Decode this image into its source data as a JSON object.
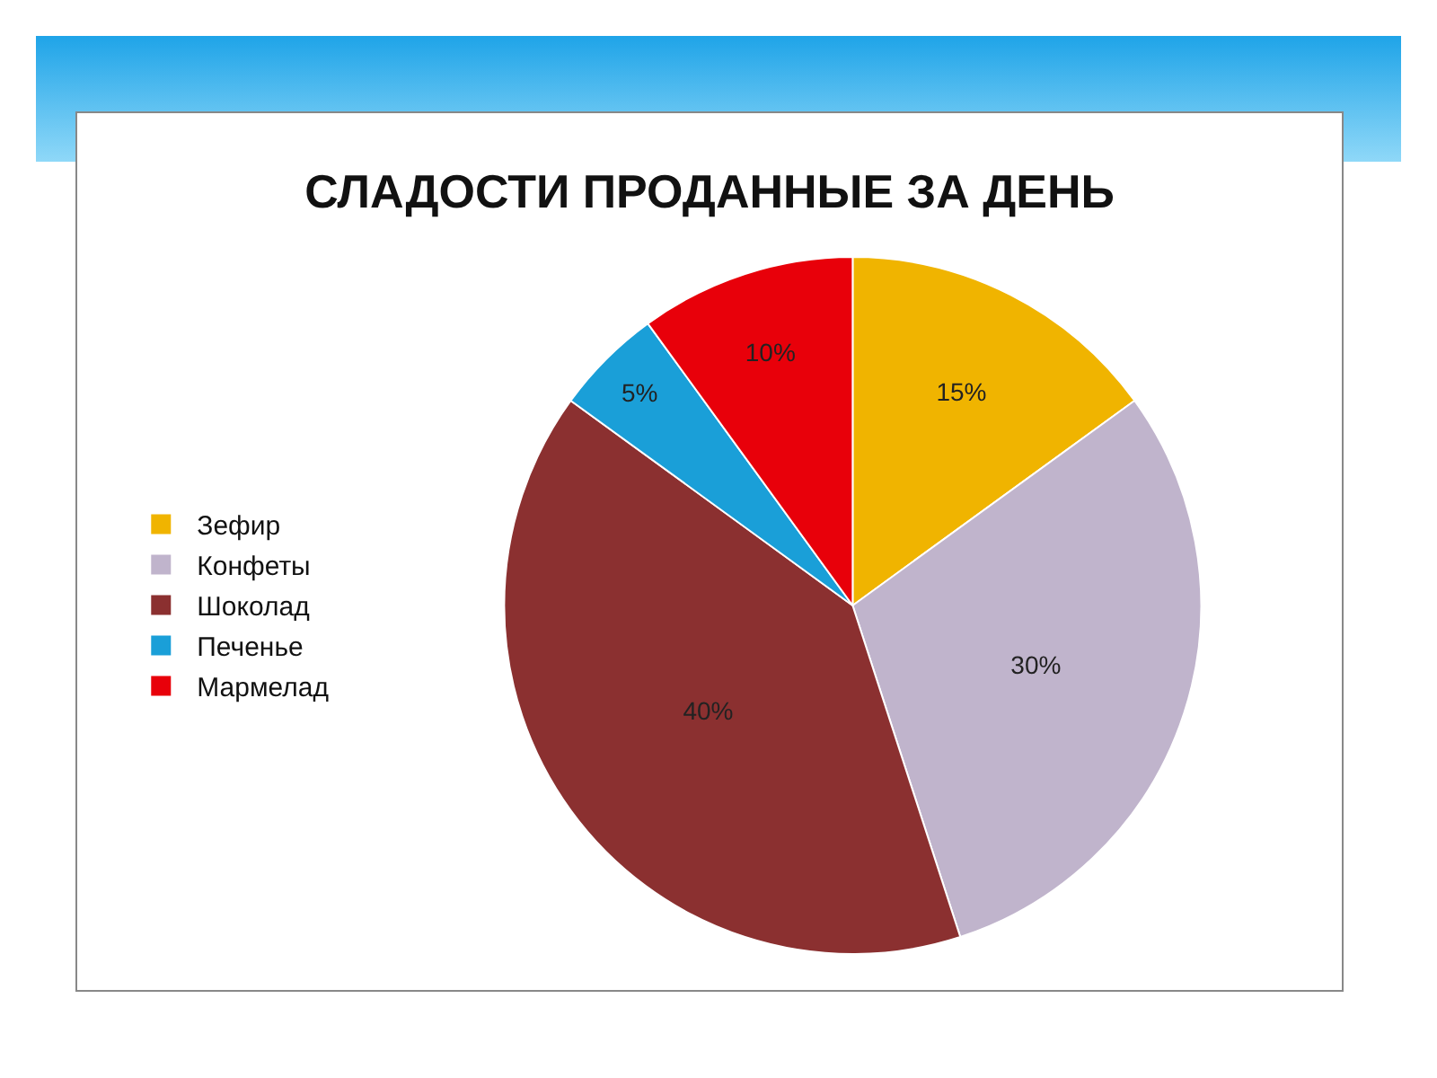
{
  "chart_data": {
    "type": "pie",
    "title": "СЛАДОСТИ ПРОДАННЫЕ ЗА ДЕНЬ",
    "categories": [
      "Зефир",
      "Конфеты",
      "Шоколад",
      "Печенье",
      "Мармелад"
    ],
    "values": [
      15,
      30,
      40,
      5,
      10
    ],
    "value_labels": [
      "15%",
      "30%",
      "40%",
      "5%",
      "10%"
    ],
    "colors": [
      "#f0b400",
      "#c0b4cc",
      "#8b3030",
      "#1a9fd8",
      "#e8000a"
    ],
    "legend": "left"
  }
}
